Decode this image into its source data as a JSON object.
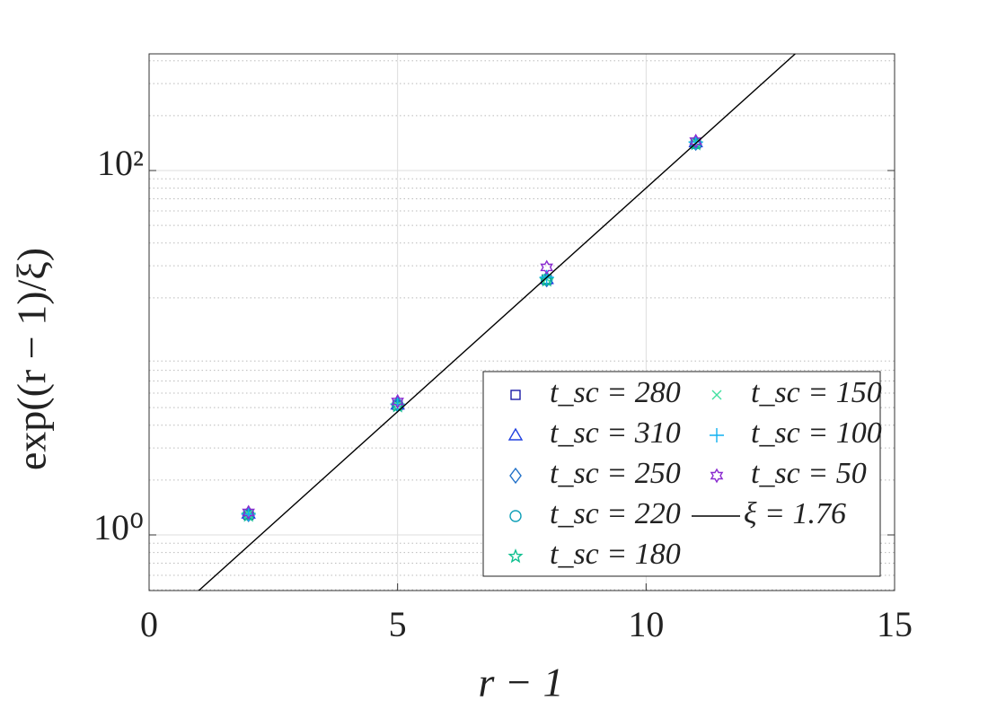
{
  "chart_data": {
    "type": "scatter",
    "xlabel": "r − 1",
    "ylabel": "exp((r − 1)/ξ)",
    "xlim": [
      0,
      15
    ],
    "xticks": [
      0,
      5,
      10,
      15
    ],
    "ylim": [
      0.495,
      437
    ],
    "yscale": "log",
    "yticks": [
      {
        "value": 1,
        "label": "10⁰"
      },
      {
        "value": 100,
        "label": "10²"
      }
    ],
    "grid": true,
    "legend": "lower right",
    "series": [
      {
        "name": "t_sc = 280",
        "color": "#1c1ca8",
        "marker": "square",
        "x": [
          2,
          5,
          8,
          11
        ],
        "values": [
          1.29,
          5.15,
          25.2,
          141
        ]
      },
      {
        "name": "t_sc = 310",
        "color": "#2040e0",
        "marker": "triangle",
        "x": [
          2,
          5,
          8,
          11
        ],
        "values": [
          1.31,
          5.2,
          25.4,
          143
        ]
      },
      {
        "name": "t_sc = 250",
        "color": "#2070c8",
        "marker": "diamond",
        "x": [
          2,
          5,
          8,
          11
        ],
        "values": [
          1.3,
          5.2,
          25.3,
          142
        ]
      },
      {
        "name": "t_sc = 220",
        "color": "#10a0b8",
        "marker": "circle",
        "x": [
          2,
          5,
          8,
          11
        ],
        "values": [
          1.3,
          5.18,
          25.2,
          141
        ]
      },
      {
        "name": "t_sc = 180",
        "color": "#10c090",
        "marker": "pentagram",
        "x": [
          2,
          5,
          8,
          11
        ],
        "values": [
          1.28,
          5.1,
          25.0,
          140
        ]
      },
      {
        "name": "t_sc = 150",
        "color": "#40e0a0",
        "marker": "x",
        "x": [
          2,
          5,
          8,
          11
        ],
        "values": [
          1.3,
          5.15,
          25.5,
          142
        ]
      },
      {
        "name": "t_sc = 100",
        "color": "#10b0f0",
        "marker": "plus",
        "x": [
          2,
          5,
          8,
          11
        ],
        "values": [
          1.3,
          5.2,
          26.0,
          143
        ]
      },
      {
        "name": "t_sc = 50",
        "color": "#8a2bd0",
        "marker": "hexagram",
        "x": [
          2,
          5,
          8,
          11
        ],
        "values": [
          1.33,
          5.4,
          29.4,
          145
        ]
      },
      {
        "name": "ξ = 1.76",
        "color": "#000000",
        "marker": "line",
        "x": [
          1,
          13
        ],
        "values": [
          0.495,
          437
        ]
      }
    ]
  }
}
